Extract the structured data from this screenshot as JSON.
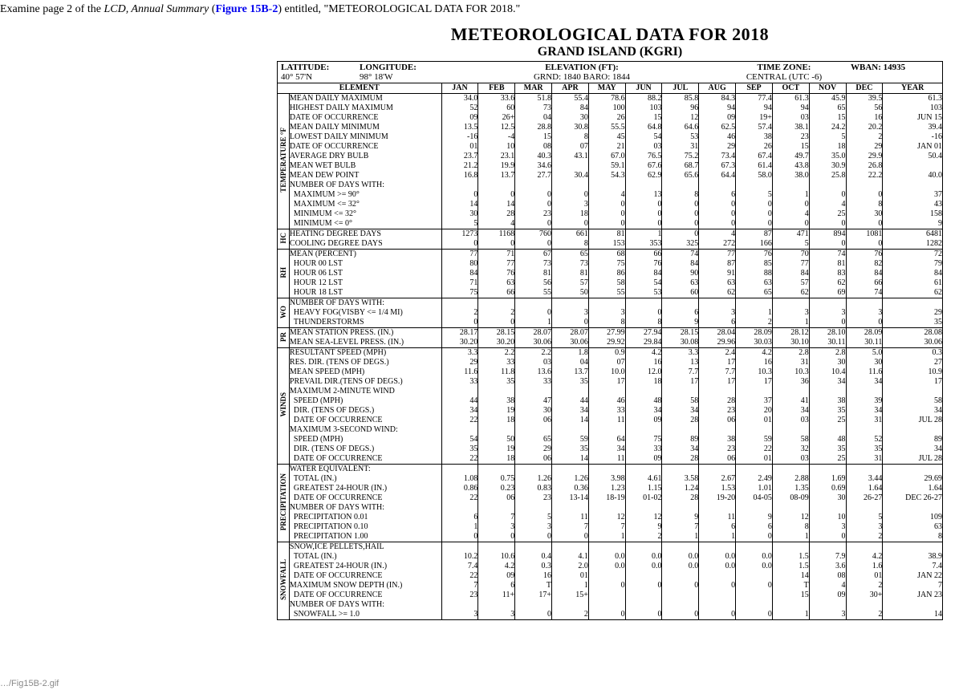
{
  "instruction": {
    "prefix": "Examine page 2 of the ",
    "italic": "LCD, Annual Summary",
    "open_paren": " (",
    "figlink": "Figure 15B-2",
    "close_paren": ") entitled, \"METEOROLOGICAL DATA FOR 2018.\""
  },
  "title": "METEOROLOGICAL DATA FOR 2018",
  "subtitle": "GRAND ISLAND (KGRI)",
  "meta": {
    "lat_label": "LATITUDE:",
    "lat_val": "40° 57'N",
    "lon_label": "LONGITUDE:",
    "lon_val": "98° 18'W",
    "elev_label": "ELEVATION (FT):",
    "elev_val": "GRND: 1840   BARO: 1844",
    "tz_label": "TIME ZONE:",
    "tz_val": "CENTRAL       (UTC -6)",
    "wban": "WBAN: 14935"
  },
  "columns": [
    "JAN",
    "FEB",
    "MAR",
    "APR",
    "MAY",
    "JUN",
    "JUL",
    "AUG",
    "SEP",
    "OCT",
    "NOV",
    "DEC",
    "YEAR"
  ],
  "element_header": "ELEMENT",
  "sections": [
    {
      "side": "TEMPERATURE  °F",
      "rows": [
        {
          "label": "MEAN DAILY MAXIMUM",
          "v": [
            "34.0",
            "33.6",
            "51.8",
            "55.4",
            "78.6",
            "88.2",
            "85.8",
            "84.3",
            "77.4",
            "61.3",
            "45.9",
            "39.5",
            "61.3"
          ]
        },
        {
          "label": "HIGHEST DAILY MAXIMUM",
          "v": [
            "52",
            "60",
            "73",
            "84",
            "100",
            "103",
            "96",
            "94",
            "94",
            "94",
            "65",
            "56",
            "103"
          ]
        },
        {
          "label": "DATE OF OCCURRENCE",
          "v": [
            "09",
            "26+",
            "04",
            "30",
            "26",
            "15",
            "12",
            "09",
            "19+",
            "03",
            "15",
            "16",
            "JUN 15"
          ]
        },
        {
          "label": "MEAN DAILY MINIMUM",
          "v": [
            "13.5",
            "12.5",
            "28.8",
            "30.8",
            "55.5",
            "64.8",
            "64.6",
            "62.5",
            "57.4",
            "38.1",
            "24.2",
            "20.2",
            "39.4"
          ]
        },
        {
          "label": "LOWEST DAILY MINIMUM",
          "v": [
            "-16",
            "-4",
            "15",
            "8",
            "45",
            "54",
            "53",
            "46",
            "38",
            "23",
            "5",
            "2",
            "-16"
          ]
        },
        {
          "label": "DATE OF OCCURRENCE",
          "v": [
            "01",
            "10",
            "08",
            "07",
            "21",
            "03",
            "31",
            "29",
            "26",
            "15",
            "18",
            "29",
            "JAN 01"
          ]
        },
        {
          "label": "AVERAGE DRY BULB",
          "v": [
            "23.7",
            "23.1",
            "40.3",
            "43.1",
            "67.0",
            "76.5",
            "75.2",
            "73.4",
            "67.4",
            "49.7",
            "35.0",
            "29.9",
            "50.4"
          ]
        },
        {
          "label": "MEAN WET BULB",
          "v": [
            "21.2",
            "19.9",
            "34.6",
            "",
            "59.1",
            "67.6",
            "68.7",
            "67.3",
            "61.4",
            "43.8",
            "30.9",
            "26.8",
            ""
          ]
        },
        {
          "label": "MEAN DEW POINT",
          "v": [
            "16.8",
            "13.7",
            "27.7",
            "30.4",
            "54.3",
            "62.9",
            "65.6",
            "64.4",
            "58.0",
            "38.0",
            "25.8",
            "22.2",
            "40.0"
          ]
        },
        {
          "label": "NUMBER OF DAYS WITH:",
          "v": [
            "",
            "",
            "",
            "",
            "",
            "",
            "",
            "",
            "",
            "",
            "",
            "",
            ""
          ]
        },
        {
          "label": "  MAXIMUM >= 90°",
          "v": [
            "0",
            "0",
            "0",
            "0",
            "4",
            "13",
            "8",
            "6",
            "5",
            "1",
            "0",
            "0",
            "37"
          ]
        },
        {
          "label": "  MAXIMUM <= 32°",
          "v": [
            "14",
            "14",
            "0",
            "3",
            "0",
            "0",
            "0",
            "0",
            "0",
            "0",
            "4",
            "8",
            "43"
          ]
        },
        {
          "label": "  MINIMUM <= 32°",
          "v": [
            "30",
            "28",
            "23",
            "18",
            "0",
            "0",
            "0",
            "0",
            "0",
            "4",
            "25",
            "30",
            "158"
          ]
        },
        {
          "label": "  MINIMUM <= 0°",
          "v": [
            "5",
            "4",
            "0",
            "0",
            "0",
            "0",
            "0",
            "0",
            "0",
            "0",
            "0",
            "0",
            "9"
          ]
        }
      ]
    },
    {
      "side": "HC",
      "rows": [
        {
          "label": "HEATING DEGREE DAYS",
          "v": [
            "1273",
            "1168",
            "760",
            "661",
            "81",
            "1",
            "0",
            "4",
            "87",
            "471",
            "894",
            "1081",
            "6481"
          ]
        },
        {
          "label": "COOLING DEGREE DAYS",
          "v": [
            "0",
            "0",
            "0",
            "8",
            "153",
            "353",
            "325",
            "272",
            "166",
            "5",
            "0",
            "0",
            "1282"
          ]
        }
      ]
    },
    {
      "side": "RH",
      "rows": [
        {
          "label": "MEAN (PERCENT)",
          "v": [
            "77",
            "71",
            "67",
            "65",
            "68",
            "66",
            "74",
            "77",
            "76",
            "70",
            "74",
            "76",
            "72"
          ]
        },
        {
          "label": "  HOUR 00 LST",
          "v": [
            "80",
            "77",
            "73",
            "73",
            "75",
            "76",
            "84",
            "87",
            "85",
            "77",
            "81",
            "82",
            "79"
          ]
        },
        {
          "label": "  HOUR 06 LST",
          "v": [
            "84",
            "76",
            "81",
            "81",
            "86",
            "84",
            "90",
            "91",
            "88",
            "84",
            "83",
            "84",
            "84"
          ]
        },
        {
          "label": "  HOUR 12 LST",
          "v": [
            "71",
            "63",
            "56",
            "57",
            "58",
            "54",
            "63",
            "63",
            "63",
            "57",
            "62",
            "66",
            "61"
          ]
        },
        {
          "label": "  HOUR 18 LST",
          "v": [
            "75",
            "66",
            "55",
            "50",
            "55",
            "53",
            "60",
            "62",
            "65",
            "62",
            "69",
            "74",
            "62"
          ]
        }
      ]
    },
    {
      "side": "WO",
      "rows": [
        {
          "label": "NUMBER OF DAYS WITH:",
          "v": [
            "",
            "",
            "",
            "",
            "",
            "",
            "",
            "",
            "",
            "",
            "",
            "",
            ""
          ]
        },
        {
          "label": "  HEAVY FOG(VISBY <= 1/4 MI)",
          "v": [
            "2",
            "2",
            "0",
            "3",
            "3",
            "0",
            "6",
            "3",
            "1",
            "3",
            "3",
            "3",
            "29"
          ]
        },
        {
          "label": "  THUNDERSTORMS",
          "v": [
            "0",
            "0",
            "1",
            "0",
            "8",
            "8",
            "9",
            "6",
            "2",
            "1",
            "0",
            "0",
            "35"
          ]
        }
      ]
    },
    {
      "side": "PR",
      "rows": [
        {
          "label": "MEAN STATION PRESS. (IN.)",
          "v": [
            "28.17",
            "28.15",
            "28.07",
            "28.07",
            "27.99",
            "27.94",
            "28.15",
            "28.04",
            "28.09",
            "28.12",
            "28.10",
            "28.09",
            "28.08"
          ]
        },
        {
          "label": "MEAN SEA-LEVEL PRESS. (IN.)",
          "v": [
            "30.20",
            "30.20",
            "30.06",
            "30.06",
            "29.92",
            "29.84",
            "30.08",
            "29.96",
            "30.03",
            "30.10",
            "30.11",
            "30.11",
            "30.06"
          ]
        }
      ]
    },
    {
      "side": "WINDS",
      "rows": [
        {
          "label": "RESULTANT SPEED (MPH)",
          "v": [
            "3.3",
            "2.2",
            "2.2",
            "1.8",
            "0.9",
            "4.2",
            "3.3",
            "2.4",
            "4.2",
            "2.8",
            "2.8",
            "5.0",
            "0.3"
          ]
        },
        {
          "label": "RES. DIR. (TENS OF DEGS.)",
          "v": [
            "29",
            "33",
            "03",
            "04",
            "07",
            "16",
            "13",
            "17",
            "16",
            "31",
            "30",
            "30",
            "27"
          ]
        },
        {
          "label": "MEAN SPEED (MPH)",
          "v": [
            "11.6",
            "11.8",
            "13.6",
            "13.7",
            "10.0",
            "12.0",
            "7.7",
            "7.7",
            "10.3",
            "10.3",
            "10.4",
            "11.6",
            "10.9"
          ]
        },
        {
          "label": "PREVAIL DIR.(TENS OF DEGS.)",
          "v": [
            "33",
            "35",
            "33",
            "35",
            "17",
            "18",
            "17",
            "17",
            "17",
            "36",
            "34",
            "34",
            "17"
          ]
        },
        {
          "label": "MAXIMUM 2-MINUTE WIND",
          "v": [
            "",
            "",
            "",
            "",
            "",
            "",
            "",
            "",
            "",
            "",
            "",
            "",
            ""
          ]
        },
        {
          "label": "  SPEED (MPH)",
          "v": [
            "44",
            "38",
            "47",
            "44",
            "46",
            "48",
            "58",
            "28",
            "37",
            "41",
            "38",
            "39",
            "58"
          ]
        },
        {
          "label": "  DIR. (TENS OF DEGS.)",
          "v": [
            "34",
            "19",
            "30",
            "34",
            "33",
            "34",
            "34",
            "23",
            "20",
            "34",
            "35",
            "34",
            "34"
          ]
        },
        {
          "label": "  DATE OF OCCURRENCE",
          "v": [
            "22",
            "18",
            "06",
            "14",
            "11",
            "09",
            "28",
            "06",
            "01",
            "03",
            "25",
            "31",
            "JUL 28"
          ]
        },
        {
          "label": "MAXIMUM 3-SECOND WIND:",
          "v": [
            "",
            "",
            "",
            "",
            "",
            "",
            "",
            "",
            "",
            "",
            "",
            "",
            ""
          ]
        },
        {
          "label": "  SPEED (MPH)",
          "v": [
            "54",
            "50",
            "65",
            "59",
            "64",
            "75",
            "89",
            "38",
            "59",
            "58",
            "48",
            "52",
            "89"
          ]
        },
        {
          "label": "  DIR. (TENS OF DEGS.)",
          "v": [
            "35",
            "19",
            "29",
            "35",
            "34",
            "33",
            "34",
            "23",
            "22",
            "32",
            "35",
            "35",
            "34"
          ]
        },
        {
          "label": "  DATE OF OCCURRENCE",
          "v": [
            "22",
            "18",
            "06",
            "14",
            "11",
            "09",
            "28",
            "06",
            "01",
            "03",
            "25",
            "31",
            "JUL 28"
          ]
        }
      ]
    },
    {
      "side": "PRECIPITATION",
      "rows": [
        {
          "label": "WATER EQUIVALENT:",
          "v": [
            "",
            "",
            "",
            "",
            "",
            "",
            "",
            "",
            "",
            "",
            "",
            "",
            ""
          ]
        },
        {
          "label": "  TOTAL (IN.)",
          "v": [
            "1.08",
            "0.75",
            "1.26",
            "1.26",
            "3.98",
            "4.61",
            "3.58",
            "2.67",
            "2.49",
            "2.88",
            "1.69",
            "3.44",
            "29.69"
          ]
        },
        {
          "label": "  GREATEST 24-HOUR (IN.)",
          "v": [
            "0.86",
            "0.23",
            "0.83",
            "0.36",
            "1.23",
            "1.15",
            "1.24",
            "1.53",
            "1.01",
            "1.35",
            "0.69",
            "1.64",
            "1.64"
          ]
        },
        {
          "label": "  DATE OF OCCURRENCE",
          "v": [
            "22",
            "06",
            "23",
            "13-14",
            "18-19",
            "01-02",
            "28",
            "19-20",
            "04-05",
            "08-09",
            "30",
            "26-27",
            "DEC 26-27"
          ]
        },
        {
          "label": "NUMBER OF DAYS WITH:",
          "v": [
            "",
            "",
            "",
            "",
            "",
            "",
            "",
            "",
            "",
            "",
            "",
            "",
            ""
          ]
        },
        {
          "label": "  PRECIPITATION 0.01",
          "v": [
            "6",
            "7",
            "5",
            "11",
            "12",
            "12",
            "9",
            "11",
            "9",
            "12",
            "10",
            "5",
            "109"
          ]
        },
        {
          "label": "  PRECIPITATION 0.10",
          "v": [
            "1",
            "3",
            "3",
            "7",
            "7",
            "9",
            "7",
            "6",
            "6",
            "8",
            "3",
            "3",
            "63"
          ]
        },
        {
          "label": "  PRECIPITATION 1.00",
          "v": [
            "0",
            "0",
            "0",
            "0",
            "1",
            "2",
            "1",
            "1",
            "0",
            "1",
            "0",
            "2",
            "8"
          ]
        }
      ]
    },
    {
      "side": "SNOWFALL",
      "rows": [
        {
          "label": "SNOW,ICE PELLETS,HAIL",
          "v": [
            "",
            "",
            "",
            "",
            "",
            "",
            "",
            "",
            "",
            "",
            "",
            "",
            ""
          ]
        },
        {
          "label": "  TOTAL (IN.)",
          "v": [
            "10.2",
            "10.6",
            "0.4",
            "4.1",
            "0.0",
            "0.0",
            "0.0",
            "0.0",
            "0.0",
            "1.5",
            "7.9",
            "4.2",
            "38.9"
          ]
        },
        {
          "label": "  GREATEST 24-HOUR (IN.)",
          "v": [
            "7.4",
            "4.2",
            "0.3",
            "2.0",
            "0.0",
            "0.0",
            "0.0",
            "0.0",
            "0.0",
            "1.5",
            "3.6",
            "1.6",
            "7.4"
          ]
        },
        {
          "label": "  DATE OF OCCURRENCE",
          "v": [
            "22",
            "09",
            "16",
            "01",
            "",
            "",
            "",
            "",
            "",
            "14",
            "08",
            "01",
            "JAN 22"
          ]
        },
        {
          "label": "MAXIMUM SNOW DEPTH (IN.)",
          "v": [
            "7",
            "6",
            "T",
            "1",
            "0",
            "0",
            "0",
            "0",
            "0",
            "T",
            "4",
            "2",
            "7"
          ]
        },
        {
          "label": "  DATE OF OCCURRENCE",
          "v": [
            "23",
            "11+",
            "17+",
            "15+",
            "",
            "",
            "",
            "",
            "",
            "15",
            "09",
            "30+",
            "JAN 23"
          ]
        },
        {
          "label": "NUMBER OF DAYS WITH:",
          "v": [
            "",
            "",
            "",
            "",
            "",
            "",
            "",
            "",
            "",
            "",
            "",
            "",
            ""
          ]
        },
        {
          "label": "  SNOWFALL >= 1.0",
          "v": [
            "3",
            "3",
            "0",
            "2",
            "0",
            "0",
            "0",
            "0",
            "0",
            "1",
            "3",
            "2",
            "14"
          ]
        }
      ]
    }
  ],
  "footer_link": "…/Fig15B-2.gif"
}
